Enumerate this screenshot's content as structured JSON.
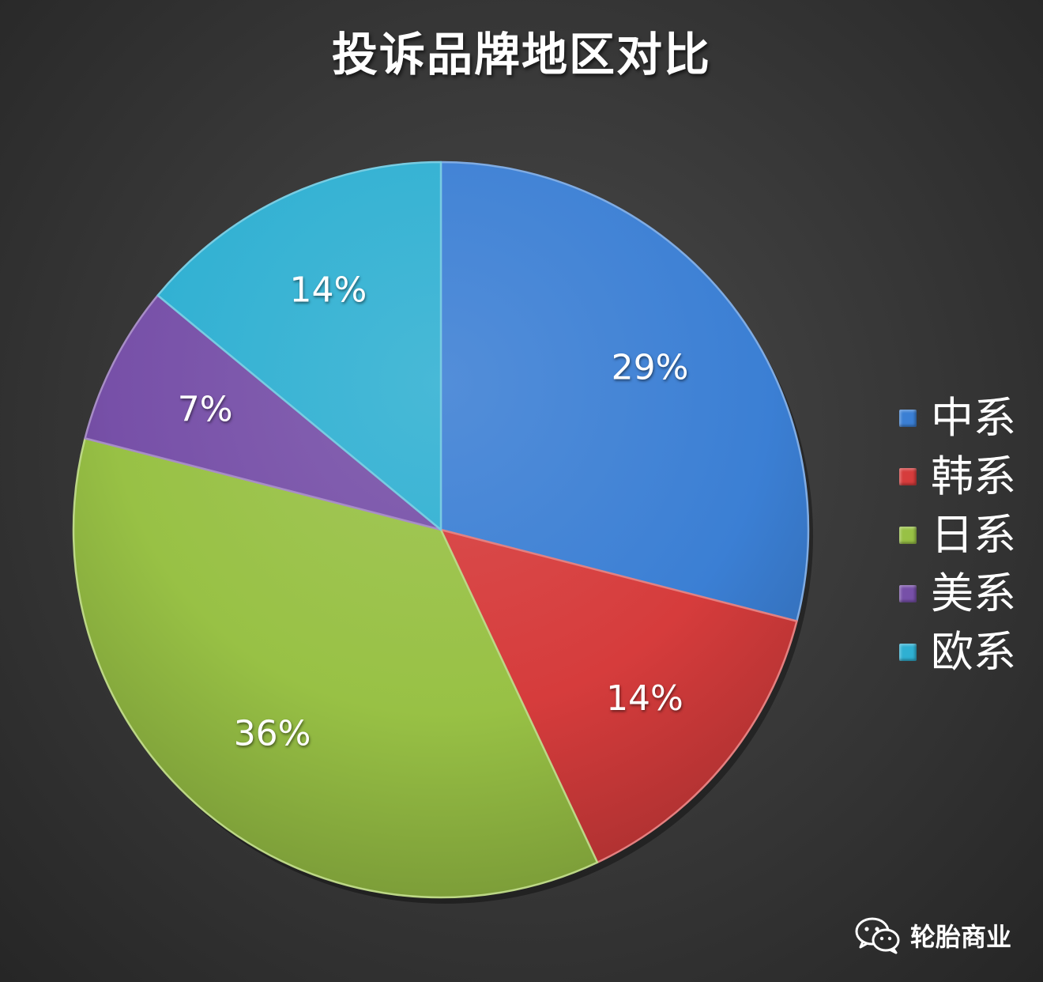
{
  "chart_data": {
    "type": "pie",
    "title": "投诉品牌地区对比",
    "categories": [
      "中系",
      "韩系",
      "日系",
      "美系",
      "欧系"
    ],
    "values": [
      29,
      14,
      36,
      7,
      14
    ],
    "labels": [
      "29%",
      "14%",
      "36%",
      "7%",
      "14%"
    ],
    "colors": [
      "#3b7fd4",
      "#d63c3c",
      "#98c145",
      "#7750a8",
      "#2fb0d2"
    ],
    "legend_position": "right"
  },
  "watermark": {
    "icon": "wechat-icon",
    "text": "轮胎商业"
  }
}
